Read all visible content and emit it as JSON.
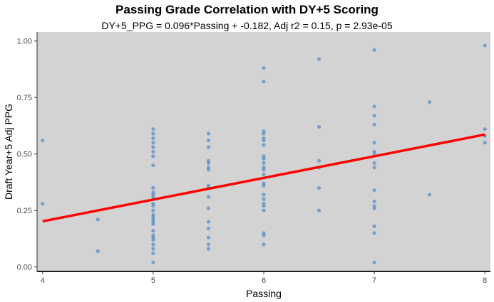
{
  "chart_data": {
    "type": "scatter",
    "title": "Passing Grade Correlation with DY+5 Scoring",
    "subtitle": "DY+5_PPG = 0.096*Passing + -0.182, Adj r2 = 0.15, p = 2.93e-05",
    "xlabel": "Passing",
    "ylabel": "Draft Year+5 Adj PPG",
    "xlim": [
      3.95,
      8.05
    ],
    "ylim": [
      -0.02,
      1.04
    ],
    "x_ticks": [
      4,
      5,
      6,
      7,
      8
    ],
    "x_tick_labels": [
      "4",
      "5",
      "6",
      "7",
      "8"
    ],
    "y_ticks": [
      0.0,
      0.25,
      0.5,
      0.75,
      1.0
    ],
    "y_tick_labels": [
      "0.00",
      "0.25",
      "0.50",
      "0.75",
      "1.00"
    ],
    "point_color": "#5b8ec4",
    "line_color": "#ff0000",
    "panel_color": "#d3d3d3",
    "regression": {
      "slope": 0.096,
      "intercept": -0.182,
      "x_start": 4,
      "x_end": 8
    },
    "points": [
      [
        4,
        0.56
      ],
      [
        4,
        0.28
      ],
      [
        4.5,
        0.21
      ],
      [
        4.5,
        0.07
      ],
      [
        5,
        0.61
      ],
      [
        5,
        0.59
      ],
      [
        5,
        0.57
      ],
      [
        5,
        0.55
      ],
      [
        5,
        0.53
      ],
      [
        5,
        0.51
      ],
      [
        5,
        0.49
      ],
      [
        5,
        0.45
      ],
      [
        5,
        0.35
      ],
      [
        5,
        0.33
      ],
      [
        5,
        0.32
      ],
      [
        5,
        0.31
      ],
      [
        5,
        0.3
      ],
      [
        5,
        0.28
      ],
      [
        5,
        0.27
      ],
      [
        5,
        0.25
      ],
      [
        5,
        0.23
      ],
      [
        5,
        0.22
      ],
      [
        5,
        0.21
      ],
      [
        5,
        0.2
      ],
      [
        5,
        0.19
      ],
      [
        5,
        0.16
      ],
      [
        5,
        0.14
      ],
      [
        5,
        0.13
      ],
      [
        5,
        0.12
      ],
      [
        5,
        0.1
      ],
      [
        5,
        0.08
      ],
      [
        5,
        0.06
      ],
      [
        5,
        0.02
      ],
      [
        5.5,
        0.59
      ],
      [
        5.5,
        0.56
      ],
      [
        5.5,
        0.53
      ],
      [
        5.5,
        0.47
      ],
      [
        5.5,
        0.46
      ],
      [
        5.5,
        0.44
      ],
      [
        5.5,
        0.43
      ],
      [
        5.5,
        0.36
      ],
      [
        5.5,
        0.35
      ],
      [
        5.5,
        0.31
      ],
      [
        5.5,
        0.26
      ],
      [
        5.5,
        0.2
      ],
      [
        5.5,
        0.17
      ],
      [
        5.5,
        0.13
      ],
      [
        5.5,
        0.1
      ],
      [
        5.5,
        0.08
      ],
      [
        6,
        0.88
      ],
      [
        6,
        0.82
      ],
      [
        6,
        0.6
      ],
      [
        6,
        0.59
      ],
      [
        6,
        0.57
      ],
      [
        6,
        0.56
      ],
      [
        6,
        0.54
      ],
      [
        6,
        0.49
      ],
      [
        6,
        0.48
      ],
      [
        6,
        0.46
      ],
      [
        6,
        0.44
      ],
      [
        6,
        0.43
      ],
      [
        6,
        0.41
      ],
      [
        6,
        0.37
      ],
      [
        6,
        0.36
      ],
      [
        6,
        0.32
      ],
      [
        6,
        0.3
      ],
      [
        6,
        0.28
      ],
      [
        6,
        0.27
      ],
      [
        6,
        0.25
      ],
      [
        6,
        0.15
      ],
      [
        6,
        0.14
      ],
      [
        6,
        0.1
      ],
      [
        6.5,
        0.92
      ],
      [
        6.5,
        0.62
      ],
      [
        6.5,
        0.47
      ],
      [
        6.5,
        0.44
      ],
      [
        6.5,
        0.35
      ],
      [
        6.5,
        0.25
      ],
      [
        7,
        0.96
      ],
      [
        7,
        0.71
      ],
      [
        7,
        0.67
      ],
      [
        7,
        0.63
      ],
      [
        7,
        0.55
      ],
      [
        7,
        0.51
      ],
      [
        7,
        0.5
      ],
      [
        7,
        0.46
      ],
      [
        7,
        0.44
      ],
      [
        7,
        0.34
      ],
      [
        7,
        0.29
      ],
      [
        7,
        0.27
      ],
      [
        7,
        0.26
      ],
      [
        7,
        0.18
      ],
      [
        7,
        0.15
      ],
      [
        7,
        0.02
      ],
      [
        7.5,
        0.73
      ],
      [
        7.5,
        0.32
      ],
      [
        8,
        0.98
      ],
      [
        8,
        0.61
      ],
      [
        8,
        0.58
      ],
      [
        8,
        0.55
      ]
    ]
  }
}
